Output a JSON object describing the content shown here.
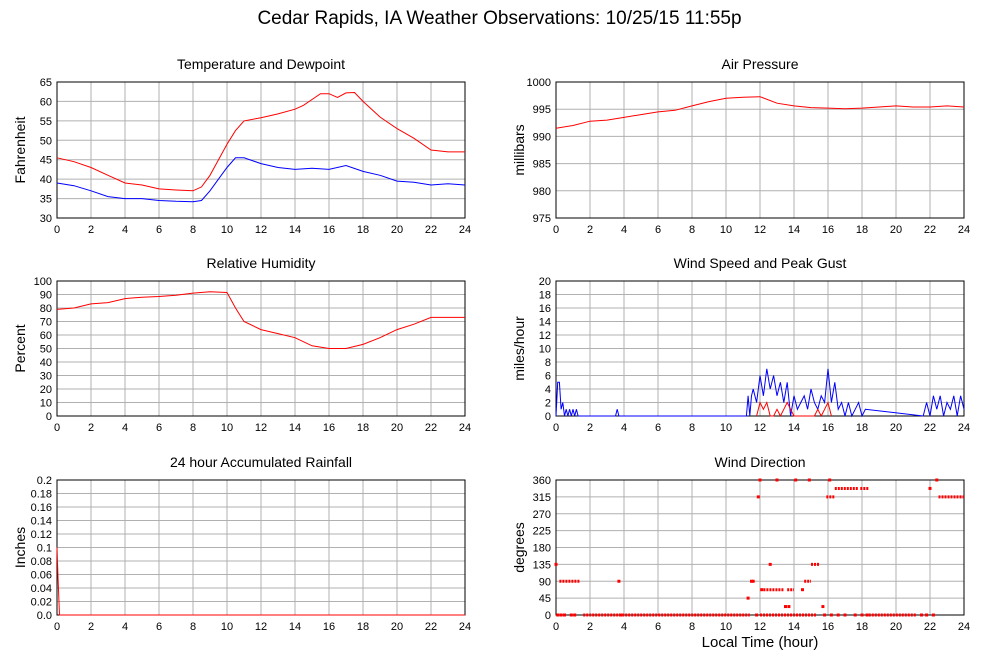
{
  "title": "Cedar Rapids, IA Weather Observations: 10/25/15 11:55p",
  "shared_xlabel": "Local Time (hour)",
  "chart_data": [
    {
      "id": "temp",
      "type": "line",
      "title": "Temperature and Dewpoint",
      "ylabel": "Fahrenheit",
      "xlabel": "",
      "xlim": [
        0,
        24
      ],
      "ylim": [
        30,
        65
      ],
      "xticks": [
        0,
        2,
        4,
        6,
        8,
        10,
        12,
        14,
        16,
        18,
        20,
        22,
        24
      ],
      "yticks": [
        30,
        35,
        40,
        45,
        50,
        55,
        60,
        65
      ],
      "grid": true,
      "series": [
        {
          "color": "#ff0000",
          "x": [
            0,
            1,
            2,
            3,
            4,
            5,
            6,
            7,
            8,
            8.5,
            9,
            9.5,
            10,
            10.5,
            11,
            12,
            13,
            14,
            14.5,
            15,
            15.5,
            16,
            16.5,
            17,
            17.5,
            18,
            19,
            20,
            21,
            22,
            23,
            24
          ],
          "y": [
            45.5,
            44.5,
            43,
            41,
            39,
            38.5,
            37.5,
            37.2,
            37,
            38,
            41,
            45,
            49,
            52.5,
            55,
            55.8,
            56.8,
            58,
            59,
            60.5,
            62,
            62,
            61,
            62.2,
            62.3,
            60,
            56,
            53,
            50.5,
            47.5,
            47,
            47
          ]
        },
        {
          "color": "#0000ff",
          "x": [
            0,
            1,
            2,
            3,
            4,
            5,
            6,
            7,
            8,
            8.5,
            9,
            9.5,
            10,
            10.5,
            11,
            12,
            13,
            14,
            15,
            16,
            17,
            18,
            19,
            20,
            21,
            22,
            23,
            24
          ],
          "y": [
            39,
            38.3,
            37,
            35.5,
            35,
            35,
            34.5,
            34.3,
            34.2,
            34.5,
            37,
            40,
            43,
            45.5,
            45.5,
            44,
            43,
            42.5,
            42.8,
            42.5,
            43.5,
            42,
            41,
            39.5,
            39.2,
            38.5,
            38.8,
            38.5
          ]
        }
      ]
    },
    {
      "id": "pressure",
      "type": "line",
      "title": "Air Pressure",
      "ylabel": "millibars",
      "xlabel": "",
      "xlim": [
        0,
        24
      ],
      "ylim": [
        975,
        1000
      ],
      "xticks": [
        0,
        2,
        4,
        6,
        8,
        10,
        12,
        14,
        16,
        18,
        20,
        22,
        24
      ],
      "yticks": [
        975,
        980,
        985,
        990,
        995,
        1000
      ],
      "grid": true,
      "series": [
        {
          "color": "#ff0000",
          "x": [
            0,
            1,
            2,
            3,
            4,
            5,
            6,
            7,
            8,
            9,
            10,
            11,
            12,
            13,
            14,
            15,
            16,
            17,
            18,
            19,
            20,
            21,
            22,
            23,
            24
          ],
          "y": [
            991.5,
            992,
            992.8,
            993,
            993.5,
            994,
            994.5,
            994.8,
            995.6,
            996.4,
            997,
            997.2,
            997.3,
            996.1,
            995.6,
            995.3,
            995.2,
            995.1,
            995.2,
            995.4,
            995.6,
            995.4,
            995.4,
            995.6,
            995.4
          ]
        }
      ]
    },
    {
      "id": "humidity",
      "type": "line",
      "title": "Relative Humidity",
      "ylabel": "Percent",
      "xlabel": "",
      "xlim": [
        0,
        24
      ],
      "ylim": [
        0,
        100
      ],
      "xticks": [
        0,
        2,
        4,
        6,
        8,
        10,
        12,
        14,
        16,
        18,
        20,
        22,
        24
      ],
      "yticks": [
        0,
        10,
        20,
        30,
        40,
        50,
        60,
        70,
        80,
        90,
        100
      ],
      "grid": true,
      "series": [
        {
          "color": "#ff0000",
          "x": [
            0,
            1,
            2,
            3,
            4,
            5,
            6,
            7,
            8,
            9,
            10,
            10.5,
            11,
            12,
            13,
            14,
            15,
            16,
            17,
            18,
            19,
            20,
            21,
            22,
            23,
            24
          ],
          "y": [
            79,
            80,
            83,
            84,
            87,
            88,
            88.5,
            89.5,
            91,
            92,
            91.5,
            80,
            70,
            64,
            61,
            58,
            52,
            50,
            50,
            53,
            58,
            64,
            68,
            73,
            73,
            73
          ]
        }
      ]
    },
    {
      "id": "wind",
      "type": "line",
      "title": "Wind Speed and Peak Gust",
      "ylabel": "miles/hour",
      "xlabel": "",
      "xlim": [
        0,
        24
      ],
      "ylim": [
        0,
        20
      ],
      "xticks": [
        0,
        2,
        4,
        6,
        8,
        10,
        12,
        14,
        16,
        18,
        20,
        22,
        24
      ],
      "yticks": [
        0,
        2,
        4,
        6,
        8,
        10,
        12,
        14,
        16,
        18,
        20
      ],
      "grid": true,
      "series": [
        {
          "color": "#0000ff",
          "x": [
            0,
            0.1,
            0.2,
            0.3,
            0.4,
            0.5,
            0.6,
            0.7,
            0.8,
            0.9,
            1.0,
            1.1,
            1.2,
            1.3,
            1.4,
            3.5,
            3.6,
            3.7,
            11.2,
            11.3,
            11.4,
            11.5,
            11.6,
            11.8,
            12.0,
            12.2,
            12.4,
            12.6,
            12.8,
            13.0,
            13.2,
            13.4,
            13.6,
            13.8,
            14.0,
            14.2,
            14.4,
            14.6,
            14.8,
            15.0,
            15.2,
            15.4,
            15.6,
            15.8,
            16.0,
            16.2,
            16.4,
            16.6,
            16.8,
            17.0,
            17.2,
            17.4,
            17.6,
            17.8,
            18.0,
            18.2,
            21.6,
            21.8,
            22.0,
            22.2,
            22.4,
            22.6,
            22.8,
            23.0,
            23.2,
            23.4,
            23.6,
            23.8,
            24.0
          ],
          "y": [
            0,
            5,
            5,
            1,
            2,
            0,
            1,
            0,
            1,
            0,
            1,
            0,
            1,
            0,
            0,
            0,
            1,
            0,
            0,
            3,
            0,
            3,
            4,
            2,
            6,
            3,
            7,
            4,
            6,
            3,
            5,
            2,
            5,
            0,
            3,
            1,
            2,
            3,
            1,
            4,
            2,
            1,
            3,
            2,
            7,
            2,
            5,
            1,
            2,
            0,
            2,
            0,
            1,
            2,
            0,
            1,
            0,
            2,
            0,
            3,
            1,
            3,
            0,
            2,
            1,
            3,
            0,
            3,
            1
          ]
        },
        {
          "color": "#ff0000",
          "x": [
            11.8,
            12.0,
            12.2,
            12.4,
            12.6,
            12.8,
            13.0,
            13.2,
            13.4,
            13.6,
            13.8,
            14.0,
            15.2,
            15.4,
            15.6,
            15.8,
            16.0,
            16.2
          ],
          "y": [
            0,
            2,
            1,
            2,
            0,
            0,
            1,
            0,
            1,
            2,
            1,
            0,
            0,
            1,
            0,
            1,
            2,
            0
          ]
        }
      ]
    },
    {
      "id": "rain",
      "type": "line",
      "title": "24 hour Accumulated Rainfall",
      "ylabel": "Inches",
      "xlabel": "",
      "xlim": [
        0,
        24
      ],
      "ylim": [
        0,
        0.2
      ],
      "xticks": [
        0,
        2,
        4,
        6,
        8,
        10,
        12,
        14,
        16,
        18,
        20,
        22,
        24
      ],
      "yticks": [
        0.0,
        0.02,
        0.04,
        0.06,
        0.08,
        0.1,
        0.12,
        0.14,
        0.16,
        0.18,
        0.2
      ],
      "ytick_labels": [
        "0.0",
        "0.02",
        "0.04",
        "0.06",
        "0.08",
        "0.1",
        "0.12",
        "0.14",
        "0.16",
        "0.18",
        "0.2"
      ],
      "grid": true,
      "series": [
        {
          "color": "#ff0000",
          "x": [
            0,
            0.05,
            0.15,
            24
          ],
          "y": [
            0.1,
            0.06,
            0,
            0
          ]
        }
      ]
    },
    {
      "id": "direction",
      "type": "scatter",
      "title": "Wind Direction",
      "ylabel": "degrees",
      "xlabel": "Local Time (hour)",
      "xlim": [
        0,
        24
      ],
      "ylim": [
        0,
        360
      ],
      "xticks": [
        0,
        2,
        4,
        6,
        8,
        10,
        12,
        14,
        16,
        18,
        20,
        22,
        24
      ],
      "yticks": [
        0,
        45,
        90,
        135,
        180,
        225,
        270,
        315,
        360
      ],
      "grid": true,
      "segments": [
        {
          "color": "#ff0000",
          "x0": 1.6,
          "x1": 11.4,
          "y": 0
        },
        {
          "color": "#ff0000",
          "x0": 12.0,
          "x1": 15.3,
          "y": 0
        },
        {
          "color": "#ff0000",
          "x0": 18.4,
          "x1": 21.2,
          "y": 0
        },
        {
          "color": "#ff0000",
          "x0": 0.2,
          "x1": 1.4,
          "y": 90
        },
        {
          "color": "#ff0000",
          "x0": 12.2,
          "x1": 13.4,
          "y": 67.5
        },
        {
          "color": "#ff0000",
          "x0": 13.6,
          "x1": 14.0,
          "y": 67.5
        },
        {
          "color": "#ff0000",
          "x0": 14.6,
          "x1": 15.0,
          "y": 90
        },
        {
          "color": "#ff0000",
          "x0": 15.0,
          "x1": 15.5,
          "y": 135
        },
        {
          "color": "#ff0000",
          "x0": 15.9,
          "x1": 16.4,
          "y": 315
        },
        {
          "color": "#ff0000",
          "x0": 16.4,
          "x1": 17.8,
          "y": 337.5
        },
        {
          "color": "#ff0000",
          "x0": 17.9,
          "x1": 18.4,
          "y": 337.5
        },
        {
          "color": "#ff0000",
          "x0": 22.5,
          "x1": 24.0,
          "y": 315
        }
      ],
      "points": [
        {
          "color": "#ff0000",
          "x": [
            0,
            0.1,
            0.3,
            0.5,
            0.9,
            1.1,
            3.7,
            3.8,
            11.3,
            11.5,
            11.6,
            11.8,
            11.9,
            12.0,
            12.1,
            12.6,
            13.0,
            13.5,
            13.7,
            14.1,
            14.5,
            14.9,
            15.7,
            15.8,
            16.1,
            16.2,
            16.6,
            17.0,
            17.6,
            18.0,
            18.3,
            21.5,
            21.8,
            22.0,
            22.2,
            22.4
          ],
          "y": [
            135,
            0,
            0,
            0,
            0,
            0,
            90,
            0,
            45,
            90,
            90,
            0,
            315,
            360,
            67.5,
            135,
            360,
            22.5,
            22.5,
            360,
            67.5,
            360,
            22.5,
            0,
            360,
            0,
            0,
            0,
            0,
            0,
            0,
            0,
            0,
            337.5,
            0,
            360
          ]
        }
      ]
    }
  ]
}
